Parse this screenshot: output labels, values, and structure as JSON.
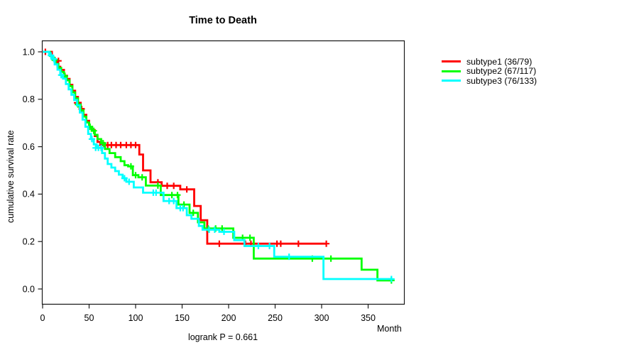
{
  "title": "Time to Death",
  "footer": {
    "logrank_label": "logrank P = 0.661"
  },
  "axis_color": "#1a1a1a",
  "background": "#ffffff",
  "chart_data": {
    "type": "line",
    "style": "kaplan-meier-step",
    "title": "Time to Death",
    "xlabel": "Month",
    "ylabel": "cumulative survival rate",
    "xlim": [
      0,
      388
    ],
    "ylim": [
      0.0,
      1.0
    ],
    "xticks": [
      0,
      50,
      100,
      150,
      200,
      250,
      300,
      350
    ],
    "yticks": [
      "0.0",
      "0.2",
      "0.4",
      "0.6",
      "0.8",
      "1.0"
    ],
    "grid": false,
    "legend_position": "right-outside",
    "logrank_p": 0.661,
    "series": [
      {
        "name": "subtype1",
        "label": "subtype1 (36/79)",
        "color": "#ff0000",
        "events": 36,
        "n": 79,
        "end_month": 305,
        "points": [
          [
            0,
            1.0
          ],
          [
            10,
            0.975
          ],
          [
            13,
            0.962
          ],
          [
            16,
            0.937
          ],
          [
            19,
            0.924
          ],
          [
            23,
            0.899
          ],
          [
            26,
            0.886
          ],
          [
            29,
            0.861
          ],
          [
            32,
            0.836
          ],
          [
            35,
            0.81
          ],
          [
            38,
            0.785
          ],
          [
            41,
            0.759
          ],
          [
            44,
            0.734
          ],
          [
            47,
            0.709
          ],
          [
            50,
            0.683
          ],
          [
            53,
            0.67
          ],
          [
            56,
            0.645
          ],
          [
            59,
            0.62
          ],
          [
            62,
            0.607
          ],
          [
            104,
            0.567
          ],
          [
            108,
            0.5
          ],
          [
            116,
            0.45
          ],
          [
            128,
            0.435
          ],
          [
            148,
            0.42
          ],
          [
            163,
            0.35
          ],
          [
            170,
            0.29
          ],
          [
            177,
            0.191
          ]
        ],
        "censors": [
          [
            3,
            1.0
          ],
          [
            17,
            0.962
          ],
          [
            24,
            0.899
          ],
          [
            37,
            0.785
          ],
          [
            42,
            0.759
          ],
          [
            66,
            0.607
          ],
          [
            70,
            0.607
          ],
          [
            74,
            0.607
          ],
          [
            79,
            0.607
          ],
          [
            84,
            0.607
          ],
          [
            90,
            0.607
          ],
          [
            95,
            0.607
          ],
          [
            100,
            0.607
          ],
          [
            124,
            0.45
          ],
          [
            134,
            0.435
          ],
          [
            141,
            0.435
          ],
          [
            155,
            0.42
          ],
          [
            190,
            0.191
          ],
          [
            218,
            0.191
          ],
          [
            224,
            0.191
          ],
          [
            252,
            0.191
          ],
          [
            256,
            0.191
          ],
          [
            275,
            0.191
          ],
          [
            305,
            0.191
          ]
        ]
      },
      {
        "name": "subtype2",
        "label": "subtype2 (67/117)",
        "color": "#00ff00",
        "events": 67,
        "n": 117,
        "end_month": 375,
        "points": [
          [
            0,
            1.0
          ],
          [
            8,
            0.983
          ],
          [
            11,
            0.966
          ],
          [
            14,
            0.949
          ],
          [
            17,
            0.932
          ],
          [
            20,
            0.915
          ],
          [
            23,
            0.898
          ],
          [
            26,
            0.88
          ],
          [
            29,
            0.855
          ],
          [
            32,
            0.829
          ],
          [
            35,
            0.804
          ],
          [
            38,
            0.778
          ],
          [
            41,
            0.753
          ],
          [
            44,
            0.727
          ],
          [
            47,
            0.702
          ],
          [
            50,
            0.684
          ],
          [
            53,
            0.667
          ],
          [
            56,
            0.65
          ],
          [
            59,
            0.632
          ],
          [
            63,
            0.615
          ],
          [
            67,
            0.59
          ],
          [
            72,
            0.573
          ],
          [
            78,
            0.556
          ],
          [
            84,
            0.539
          ],
          [
            88,
            0.522
          ],
          [
            92,
            0.517
          ],
          [
            97,
            0.48
          ],
          [
            103,
            0.471
          ],
          [
            111,
            0.436
          ],
          [
            127,
            0.396
          ],
          [
            146,
            0.356
          ],
          [
            158,
            0.321
          ],
          [
            167,
            0.281
          ],
          [
            174,
            0.255
          ],
          [
            205,
            0.216
          ],
          [
            227,
            0.128
          ],
          [
            343,
            0.081
          ],
          [
            360,
            0.036
          ]
        ],
        "censors": [
          [
            13,
            0.966
          ],
          [
            24,
            0.898
          ],
          [
            38,
            0.778
          ],
          [
            51,
            0.684
          ],
          [
            55,
            0.667
          ],
          [
            65,
            0.615
          ],
          [
            95,
            0.517
          ],
          [
            100,
            0.48
          ],
          [
            107,
            0.471
          ],
          [
            124,
            0.436
          ],
          [
            139,
            0.396
          ],
          [
            145,
            0.396
          ],
          [
            152,
            0.356
          ],
          [
            162,
            0.321
          ],
          [
            178,
            0.255
          ],
          [
            186,
            0.255
          ],
          [
            193,
            0.255
          ],
          [
            215,
            0.216
          ],
          [
            223,
            0.216
          ],
          [
            290,
            0.128
          ],
          [
            310,
            0.128
          ],
          [
            375,
            0.036
          ]
        ]
      },
      {
        "name": "subtype3",
        "label": "subtype3 (76/133)",
        "color": "#00ffff",
        "events": 76,
        "n": 133,
        "end_month": 375,
        "points": [
          [
            0,
            1.0
          ],
          [
            7,
            0.985
          ],
          [
            10,
            0.97
          ],
          [
            13,
            0.947
          ],
          [
            16,
            0.925
          ],
          [
            19,
            0.902
          ],
          [
            22,
            0.887
          ],
          [
            25,
            0.864
          ],
          [
            28,
            0.842
          ],
          [
            31,
            0.819
          ],
          [
            34,
            0.797
          ],
          [
            37,
            0.774
          ],
          [
            40,
            0.744
          ],
          [
            43,
            0.714
          ],
          [
            46,
            0.684
          ],
          [
            49,
            0.654
          ],
          [
            52,
            0.632
          ],
          [
            55,
            0.61
          ],
          [
            58,
            0.595
          ],
          [
            64,
            0.573
          ],
          [
            67,
            0.55
          ],
          [
            70,
            0.527
          ],
          [
            74,
            0.512
          ],
          [
            78,
            0.497
          ],
          [
            82,
            0.482
          ],
          [
            86,
            0.467
          ],
          [
            90,
            0.452
          ],
          [
            98,
            0.428
          ],
          [
            108,
            0.406
          ],
          [
            130,
            0.371
          ],
          [
            144,
            0.341
          ],
          [
            155,
            0.311
          ],
          [
            160,
            0.296
          ],
          [
            168,
            0.266
          ],
          [
            172,
            0.25
          ],
          [
            190,
            0.241
          ],
          [
            206,
            0.206
          ],
          [
            217,
            0.181
          ],
          [
            249,
            0.136
          ],
          [
            302,
            0.042
          ]
        ],
        "censors": [
          [
            9,
            0.985
          ],
          [
            12,
            0.97
          ],
          [
            20,
            0.902
          ],
          [
            53,
            0.632
          ],
          [
            57,
            0.595
          ],
          [
            60,
            0.595
          ],
          [
            63,
            0.595
          ],
          [
            88,
            0.467
          ],
          [
            93,
            0.452
          ],
          [
            119,
            0.406
          ],
          [
            122,
            0.406
          ],
          [
            136,
            0.371
          ],
          [
            141,
            0.371
          ],
          [
            148,
            0.341
          ],
          [
            151,
            0.341
          ],
          [
            179,
            0.25
          ],
          [
            185,
            0.25
          ],
          [
            195,
            0.241
          ],
          [
            232,
            0.181
          ],
          [
            244,
            0.181
          ],
          [
            265,
            0.136
          ],
          [
            375,
            0.042
          ]
        ]
      }
    ]
  }
}
